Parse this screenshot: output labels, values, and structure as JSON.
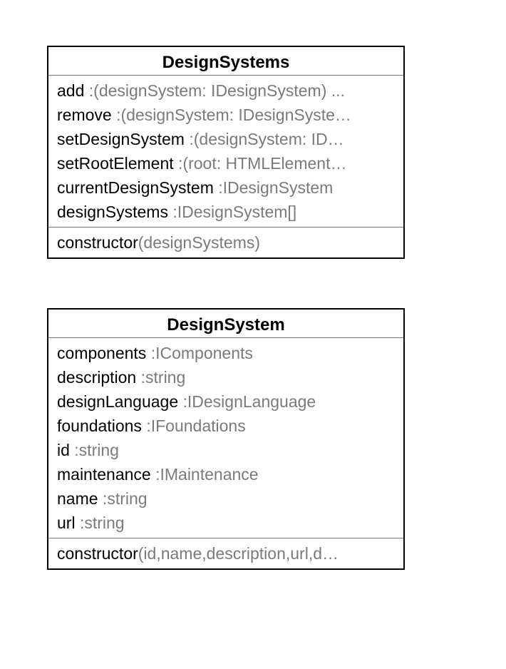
{
  "colors": {
    "border": "#000000",
    "divider": "#777777",
    "name_text": "#000000",
    "type_text": "#7a7a7a"
  },
  "classes": [
    {
      "title": "DesignSystems",
      "attributes": [
        {
          "name": "add",
          "type": " :(designSystem: IDesignSystem) ..."
        },
        {
          "name": "remove",
          "type": " :(designSystem: IDesignSyste…"
        },
        {
          "name": "setDesignSystem",
          "type": " :(designSystem: ID…"
        },
        {
          "name": "setRootElement",
          "type": " :(root: HTMLElement…"
        },
        {
          "name": "currentDesignSystem",
          "type": " :IDesignSystem"
        },
        {
          "name": "designSystems",
          "type": " :IDesignSystem[]"
        }
      ],
      "methods": [
        {
          "name": "constructor",
          "params": "(designSystems)"
        }
      ]
    },
    {
      "title": "DesignSystem",
      "attributes": [
        {
          "name": "components",
          "type": " :IComponents"
        },
        {
          "name": "description",
          "type": " :string"
        },
        {
          "name": "designLanguage",
          "type": " :IDesignLanguage"
        },
        {
          "name": "foundations",
          "type": " :IFoundations"
        },
        {
          "name": "id",
          "type": " :string"
        },
        {
          "name": "maintenance",
          "type": " :IMaintenance"
        },
        {
          "name": "name",
          "type": " :string"
        },
        {
          "name": "url",
          "type": " :string"
        }
      ],
      "methods": [
        {
          "name": "constructor",
          "params": "(id,name,description,url,d…"
        }
      ]
    }
  ]
}
